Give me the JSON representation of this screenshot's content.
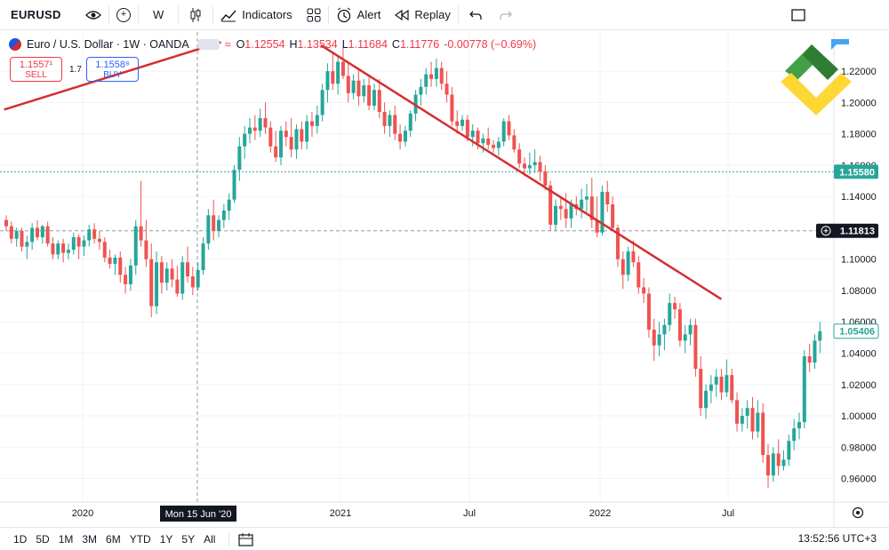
{
  "toolbar": {
    "symbol": "EURUSD",
    "interval": "W",
    "indicators_label": "Indicators",
    "alert_label": "Alert",
    "replay_label": "Replay"
  },
  "legend": {
    "title": "Euro / U.S. Dollar · 1W · OANDA",
    "open_label": "O",
    "open": "1.12554",
    "high_label": "H",
    "high": "1.13534",
    "low_label": "L",
    "low": "1.11684",
    "close_label": "C",
    "close": "1.11776",
    "change": "-0.00778 (−0.69%)"
  },
  "trade": {
    "sell_price": "1.1557¹",
    "sell_label": "SELL",
    "spread": "1.7",
    "buy_price": "1.1558⁸",
    "buy_label": "BUY"
  },
  "bottom": {
    "ranges": [
      "1D",
      "5D",
      "1M",
      "3M",
      "6M",
      "YTD",
      "1Y",
      "5Y",
      "All"
    ],
    "clock": "13:52:56 UTC+3"
  },
  "colors": {
    "up": "#26a69a",
    "down": "#ef5350",
    "trendline": "#d32f2f",
    "price_tag_green": "#26a69a",
    "price_tag_dark": "#131722"
  },
  "chart_data": {
    "type": "candlestick",
    "ylim": [
      0.945,
      1.245
    ],
    "y_ticks": [
      "1.22000",
      "1.20000",
      "1.18000",
      "1.16000",
      "1.14000",
      "1.10000",
      "1.08000",
      "1.06000",
      "1.04000",
      "1.02000",
      "1.00000",
      "0.98000",
      "0.96000"
    ],
    "x_ticks": [
      "2020",
      "2021",
      "Jul",
      "2022",
      "Jul"
    ],
    "crosshair_date": "Mon 15 Jun '20",
    "price_labels": [
      {
        "text": "1.15580",
        "value": 1.1558,
        "style": "green"
      },
      {
        "text": "1.11813",
        "value": 1.11813,
        "style": "dark"
      },
      {
        "text": "1.05406",
        "value": 1.05406,
        "style": "light"
      }
    ],
    "series": [
      {
        "name": "candles",
        "ohlc": [
          [
            1.125,
            1.128,
            1.118,
            1.121
          ],
          [
            1.121,
            1.124,
            1.11,
            1.113
          ],
          [
            1.113,
            1.12,
            1.108,
            1.118
          ],
          [
            1.118,
            1.12,
            1.105,
            1.108
          ],
          [
            1.108,
            1.115,
            1.1,
            1.111
          ],
          [
            1.111,
            1.123,
            1.106,
            1.12
          ],
          [
            1.12,
            1.125,
            1.112,
            1.114
          ],
          [
            1.114,
            1.122,
            1.11,
            1.121
          ],
          [
            1.121,
            1.124,
            1.108,
            1.11
          ],
          [
            1.11,
            1.114,
            1.1,
            1.103
          ],
          [
            1.103,
            1.112,
            1.1,
            1.11
          ],
          [
            1.11,
            1.113,
            1.098,
            1.104
          ],
          [
            1.104,
            1.11,
            1.1,
            1.106
          ],
          [
            1.106,
            1.117,
            1.103,
            1.114
          ],
          [
            1.114,
            1.116,
            1.1,
            1.108
          ],
          [
            1.108,
            1.115,
            1.102,
            1.112
          ],
          [
            1.112,
            1.122,
            1.108,
            1.119
          ],
          [
            1.119,
            1.123,
            1.11,
            1.113
          ],
          [
            1.113,
            1.118,
            1.106,
            1.111
          ],
          [
            1.111,
            1.114,
            1.098,
            1.101
          ],
          [
            1.101,
            1.106,
            1.094,
            1.097
          ],
          [
            1.097,
            1.103,
            1.09,
            1.101
          ],
          [
            1.101,
            1.105,
            1.085,
            1.09
          ],
          [
            1.09,
            1.095,
            1.078,
            1.084
          ],
          [
            1.084,
            1.1,
            1.08,
            1.096
          ],
          [
            1.096,
            1.125,
            1.09,
            1.121
          ],
          [
            1.121,
            1.15,
            1.108,
            1.112
          ],
          [
            1.112,
            1.125,
            1.095,
            1.1
          ],
          [
            1.1,
            1.11,
            1.063,
            1.07
          ],
          [
            1.07,
            1.105,
            1.065,
            1.098
          ],
          [
            1.098,
            1.102,
            1.078,
            1.085
          ],
          [
            1.085,
            1.098,
            1.08,
            1.094
          ],
          [
            1.094,
            1.1,
            1.082,
            1.087
          ],
          [
            1.087,
            1.096,
            1.076,
            1.078
          ],
          [
            1.078,
            1.102,
            1.074,
            1.098
          ],
          [
            1.098,
            1.108,
            1.085,
            1.089
          ],
          [
            1.089,
            1.095,
            1.077,
            1.082
          ],
          [
            1.082,
            1.098,
            1.08,
            1.093
          ],
          [
            1.093,
            1.114,
            1.09,
            1.11
          ],
          [
            1.11,
            1.132,
            1.106,
            1.128
          ],
          [
            1.128,
            1.138,
            1.112,
            1.118
          ],
          [
            1.118,
            1.128,
            1.114,
            1.125
          ],
          [
            1.125,
            1.135,
            1.12,
            1.131
          ],
          [
            1.131,
            1.142,
            1.125,
            1.138
          ],
          [
            1.138,
            1.16,
            1.136,
            1.157
          ],
          [
            1.157,
            1.178,
            1.15,
            1.172
          ],
          [
            1.172,
            1.185,
            1.164,
            1.18
          ],
          [
            1.18,
            1.19,
            1.174,
            1.184
          ],
          [
            1.184,
            1.192,
            1.176,
            1.182
          ],
          [
            1.182,
            1.196,
            1.178,
            1.19
          ],
          [
            1.19,
            1.2,
            1.18,
            1.184
          ],
          [
            1.184,
            1.188,
            1.168,
            1.172
          ],
          [
            1.172,
            1.182,
            1.162,
            1.165
          ],
          [
            1.165,
            1.185,
            1.16,
            1.182
          ],
          [
            1.182,
            1.188,
            1.172,
            1.178
          ],
          [
            1.178,
            1.19,
            1.165,
            1.17
          ],
          [
            1.17,
            1.186,
            1.164,
            1.183
          ],
          [
            1.183,
            1.188,
            1.17,
            1.175
          ],
          [
            1.175,
            1.192,
            1.17,
            1.188
          ],
          [
            1.188,
            1.194,
            1.178,
            1.185
          ],
          [
            1.185,
            1.198,
            1.18,
            1.192
          ],
          [
            1.192,
            1.212,
            1.188,
            1.208
          ],
          [
            1.208,
            1.225,
            1.2,
            1.22
          ],
          [
            1.22,
            1.232,
            1.208,
            1.212
          ],
          [
            1.212,
            1.23,
            1.205,
            1.226
          ],
          [
            1.226,
            1.236,
            1.215,
            1.217
          ],
          [
            1.217,
            1.225,
            1.2,
            1.206
          ],
          [
            1.206,
            1.218,
            1.202,
            1.214
          ],
          [
            1.214,
            1.222,
            1.198,
            1.204
          ],
          [
            1.204,
            1.215,
            1.2,
            1.211
          ],
          [
            1.211,
            1.218,
            1.195,
            1.198
          ],
          [
            1.198,
            1.212,
            1.195,
            1.208
          ],
          [
            1.208,
            1.215,
            1.19,
            1.194
          ],
          [
            1.194,
            1.2,
            1.18,
            1.185
          ],
          [
            1.185,
            1.195,
            1.178,
            1.192
          ],
          [
            1.192,
            1.198,
            1.176,
            1.18
          ],
          [
            1.18,
            1.186,
            1.17,
            1.175
          ],
          [
            1.175,
            1.185,
            1.172,
            1.182
          ],
          [
            1.182,
            1.195,
            1.178,
            1.193
          ],
          [
            1.193,
            1.208,
            1.188,
            1.205
          ],
          [
            1.205,
            1.215,
            1.198,
            1.21
          ],
          [
            1.21,
            1.222,
            1.205,
            1.218
          ],
          [
            1.218,
            1.226,
            1.21,
            1.215
          ],
          [
            1.215,
            1.228,
            1.21,
            1.222
          ],
          [
            1.222,
            1.226,
            1.208,
            1.212
          ],
          [
            1.212,
            1.22,
            1.2,
            1.205
          ],
          [
            1.205,
            1.21,
            1.185,
            1.188
          ],
          [
            1.188,
            1.195,
            1.18,
            1.185
          ],
          [
            1.185,
            1.192,
            1.182,
            1.189
          ],
          [
            1.189,
            1.192,
            1.175,
            1.178
          ],
          [
            1.178,
            1.186,
            1.172,
            1.182
          ],
          [
            1.182,
            1.184,
            1.17,
            1.174
          ],
          [
            1.174,
            1.18,
            1.168,
            1.177
          ],
          [
            1.177,
            1.184,
            1.17,
            1.173
          ],
          [
            1.173,
            1.176,
            1.168,
            1.171
          ],
          [
            1.171,
            1.178,
            1.166,
            1.175
          ],
          [
            1.175,
            1.19,
            1.172,
            1.188
          ],
          [
            1.188,
            1.192,
            1.176,
            1.179
          ],
          [
            1.179,
            1.183,
            1.168,
            1.17
          ],
          [
            1.17,
            1.174,
            1.158,
            1.161
          ],
          [
            1.161,
            1.165,
            1.153,
            1.158
          ],
          [
            1.158,
            1.168,
            1.154,
            1.16
          ],
          [
            1.16,
            1.17,
            1.155,
            1.162
          ],
          [
            1.162,
            1.166,
            1.15,
            1.156
          ],
          [
            1.156,
            1.16,
            1.144,
            1.147
          ],
          [
            1.147,
            1.15,
            1.118,
            1.122
          ],
          [
            1.122,
            1.138,
            1.118,
            1.134
          ],
          [
            1.134,
            1.14,
            1.125,
            1.132
          ],
          [
            1.132,
            1.142,
            1.12,
            1.126
          ],
          [
            1.126,
            1.138,
            1.12,
            1.135
          ],
          [
            1.135,
            1.14,
            1.128,
            1.132
          ],
          [
            1.132,
            1.145,
            1.126,
            1.138
          ],
          [
            1.138,
            1.148,
            1.13,
            1.14
          ],
          [
            1.14,
            1.152,
            1.12,
            1.125
          ],
          [
            1.125,
            1.14,
            1.114,
            1.117
          ],
          [
            1.117,
            1.147,
            1.115,
            1.143
          ],
          [
            1.143,
            1.15,
            1.13,
            1.135
          ],
          [
            1.135,
            1.14,
            1.118,
            1.12
          ],
          [
            1.12,
            1.122,
            1.095,
            1.1
          ],
          [
            1.1,
            1.105,
            1.081,
            1.09
          ],
          [
            1.09,
            1.108,
            1.086,
            1.105
          ],
          [
            1.105,
            1.112,
            1.095,
            1.098
          ],
          [
            1.098,
            1.102,
            1.078,
            1.082
          ],
          [
            1.082,
            1.088,
            1.072,
            1.078
          ],
          [
            1.078,
            1.082,
            1.05,
            1.055
          ],
          [
            1.055,
            1.062,
            1.035,
            1.045
          ],
          [
            1.045,
            1.06,
            1.038,
            1.052
          ],
          [
            1.052,
            1.062,
            1.042,
            1.058
          ],
          [
            1.058,
            1.078,
            1.054,
            1.072
          ],
          [
            1.072,
            1.076,
            1.062,
            1.068
          ],
          [
            1.068,
            1.072,
            1.044,
            1.048
          ],
          [
            1.048,
            1.058,
            1.04,
            1.052
          ],
          [
            1.052,
            1.062,
            1.045,
            1.058
          ],
          [
            1.058,
            1.062,
            1.025,
            1.03
          ],
          [
            1.03,
            1.038,
            1.0,
            1.005
          ],
          [
            1.005,
            1.02,
            0.998,
            1.016
          ],
          [
            1.016,
            1.026,
            1.008,
            1.02
          ],
          [
            1.02,
            1.03,
            1.012,
            1.025
          ],
          [
            1.025,
            1.03,
            1.01,
            1.015
          ],
          [
            1.015,
            1.036,
            1.012,
            1.026
          ],
          [
            1.026,
            1.03,
            1.008,
            1.01
          ],
          [
            1.01,
            1.015,
            0.99,
            0.995
          ],
          [
            0.995,
            1.005,
            0.99,
            1.0
          ],
          [
            1.0,
            1.01,
            0.992,
            1.005
          ],
          [
            1.005,
            1.012,
            0.985,
            0.99
          ],
          [
            0.99,
            1.01,
            0.986,
            1.002
          ],
          [
            1.002,
            1.008,
            0.97,
            0.975
          ],
          [
            0.975,
            0.982,
            0.954,
            0.962
          ],
          [
            0.962,
            0.98,
            0.958,
            0.976
          ],
          [
            0.976,
            0.985,
            0.962,
            0.968
          ],
          [
            0.968,
            0.978,
            0.965,
            0.972
          ],
          [
            0.972,
            0.988,
            0.968,
            0.984
          ],
          [
            0.984,
            0.998,
            0.978,
            0.992
          ],
          [
            0.992,
            1.002,
            0.985,
            0.996
          ],
          [
            0.996,
            1.042,
            0.992,
            1.038
          ],
          [
            1.038,
            1.046,
            1.028,
            1.034
          ],
          [
            1.034,
            1.052,
            1.03,
            1.048
          ],
          [
            1.048,
            1.06,
            1.04,
            1.054
          ]
        ]
      }
    ],
    "trendlines": [
      {
        "from": {
          "x": 0.005,
          "y": 1.1955
        },
        "to": {
          "x": 0.265,
          "y": 1.2385
        }
      },
      {
        "from": {
          "x": 0.385,
          "y": 1.2365
        },
        "to": {
          "x": 0.865,
          "y": 1.0745
        }
      }
    ]
  }
}
